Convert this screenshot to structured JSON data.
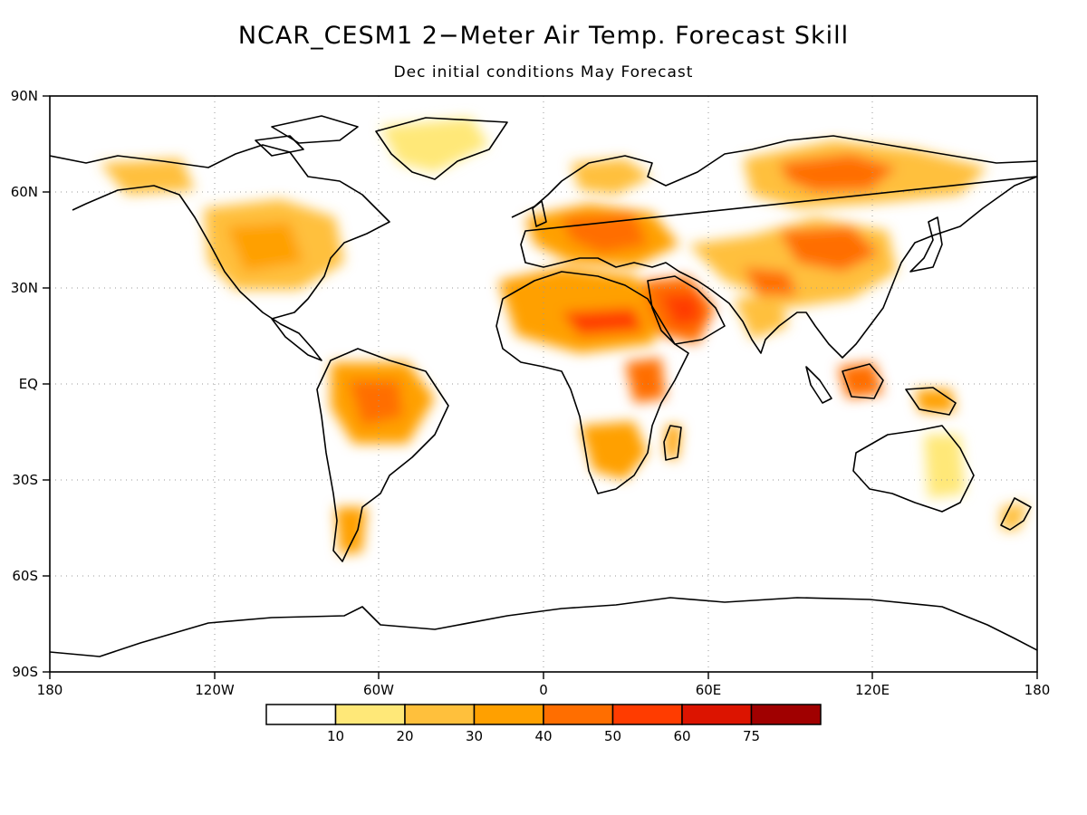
{
  "title": "NCAR_CESM1 2−Meter Air Temp. Forecast Skill",
  "subtitle": "Dec initial conditions  May Forecast",
  "axes": {
    "x_ticks": [
      "180",
      "120W",
      "60W",
      "0",
      "60E",
      "120E",
      "180"
    ],
    "y_ticks": [
      "90N",
      "60N",
      "30N",
      "EQ",
      "30S",
      "60S",
      "90S"
    ]
  },
  "colorbar": {
    "labels": [
      "10",
      "20",
      "30",
      "40",
      "50",
      "60",
      "75"
    ],
    "colors": [
      "#ffffff",
      "#ffe878",
      "#ffc03c",
      "#ffa000",
      "#ff6e00",
      "#ff3c00",
      "#dc1400",
      "#a00000"
    ]
  },
  "chart_data": {
    "type": "heatmap",
    "projection": "equirectangular",
    "lon_range": [
      -180,
      180
    ],
    "lat_range": [
      -90,
      90
    ],
    "grid": true,
    "variable": "2-meter air temperature forecast skill",
    "bins": [
      10,
      20,
      30,
      40,
      50,
      60,
      75
    ],
    "highlights": [
      {
        "region": "Central Siberia",
        "lon": 100,
        "lat": 64,
        "level": 50
      },
      {
        "region": "Mongolia / North China",
        "lon": 105,
        "lat": 42,
        "level": 50
      },
      {
        "region": "Arabian Peninsula",
        "lon": 45,
        "lat": 22,
        "level": 60
      },
      {
        "region": "Eastern Europe",
        "lon": 25,
        "lat": 48,
        "level": 50
      },
      {
        "region": "Sahara",
        "lon": 10,
        "lat": 20,
        "level": 40
      },
      {
        "region": "Amazon",
        "lon": -60,
        "lat": -5,
        "level": 40
      },
      {
        "region": "Borneo",
        "lon": 114,
        "lat": 0,
        "level": 50
      },
      {
        "region": "Central United States",
        "lon": -100,
        "lat": 40,
        "level": 30
      },
      {
        "region": "Patagonia",
        "lon": -68,
        "lat": -45,
        "level": 30
      }
    ]
  }
}
